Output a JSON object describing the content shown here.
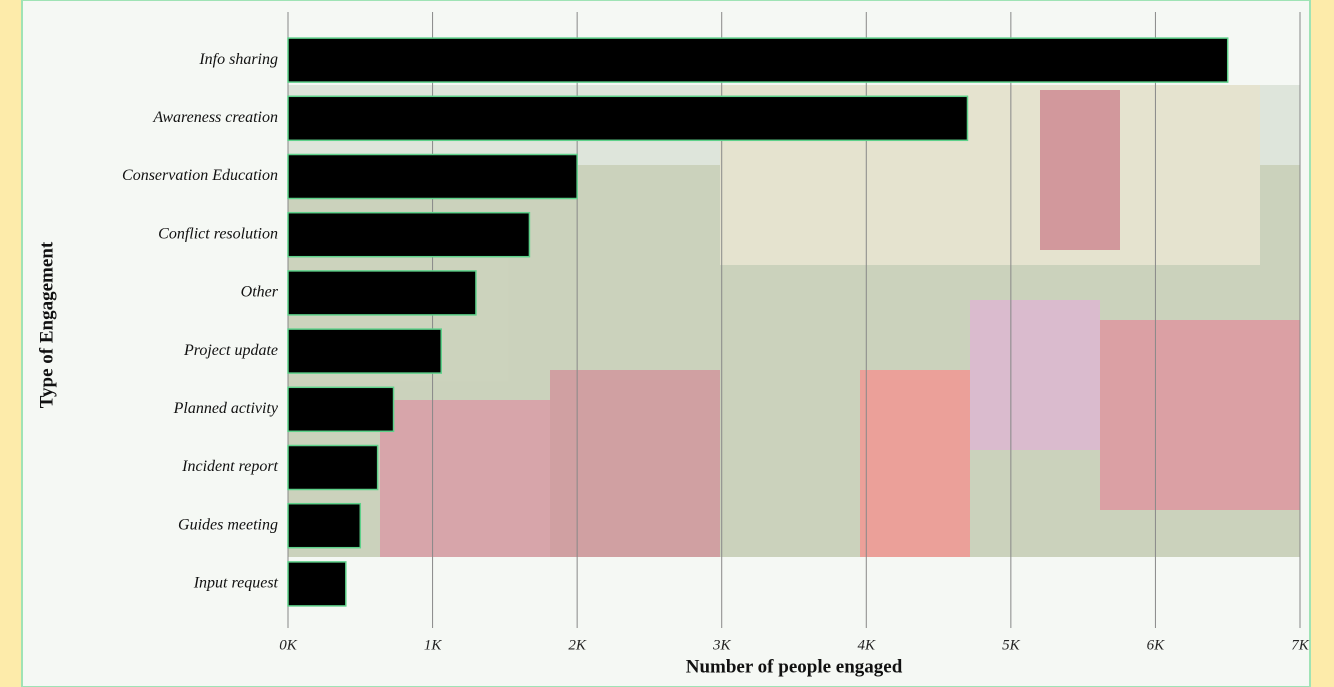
{
  "chart_data": {
    "type": "bar",
    "orientation": "horizontal",
    "x_label": "Number of people engaged",
    "y_label": "Type of Engagement",
    "categories": [
      "Info sharing",
      "Awareness creation",
      "Conservation Education",
      "Conflict resolution",
      "Other",
      "Project update",
      "Planned activity",
      "Incident report",
      "Guides meeting",
      "Input request"
    ],
    "values": [
      6500,
      4700,
      2000,
      1670,
      1300,
      1060,
      730,
      620,
      500,
      400
    ],
    "color": "#000000",
    "xlim": [
      0,
      7000
    ],
    "xticks": [
      {
        "value": 0,
        "label": "0K"
      },
      {
        "value": 1000,
        "label": "1K"
      },
      {
        "value": 2000,
        "label": "2K"
      },
      {
        "value": 3000,
        "label": "3K"
      },
      {
        "value": 4000,
        "label": "4K"
      },
      {
        "value": 5000,
        "label": "5K"
      },
      {
        "value": 6000,
        "label": "6K"
      },
      {
        "value": 7000,
        "label": "7K"
      }
    ],
    "grid": true
  }
}
